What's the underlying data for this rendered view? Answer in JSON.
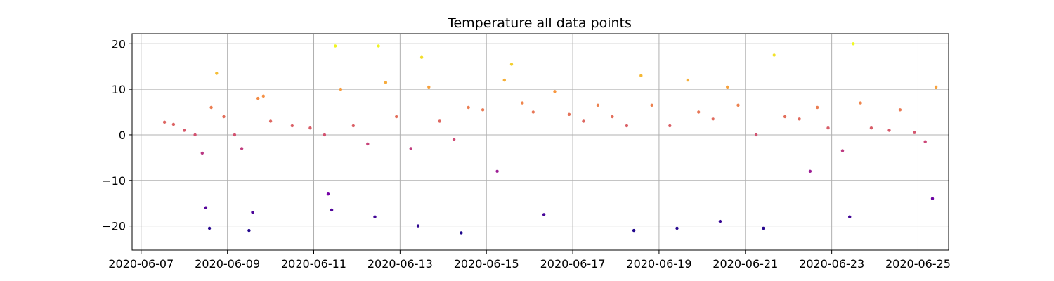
{
  "chart_data": {
    "type": "scatter",
    "title": "Temperature all data points",
    "xlabel": "",
    "ylabel": "",
    "colormap": "plasma",
    "color_encodes": "y value",
    "xlim": [
      "2020-06-06T19:00",
      "2020-06-25T17:00"
    ],
    "ylim": [
      -25.3,
      22.2
    ],
    "xticks": [
      "2020-06-07",
      "2020-06-09",
      "2020-06-11",
      "2020-06-13",
      "2020-06-15",
      "2020-06-17",
      "2020-06-19",
      "2020-06-21",
      "2020-06-23",
      "2020-06-25"
    ],
    "yticks": [
      20,
      10,
      0,
      -10,
      -20
    ],
    "ytick_labels": [
      "20",
      "10",
      "0",
      "−10",
      "−20"
    ],
    "grid": true,
    "series": [
      {
        "values": [
          [
            "2020-06-07T13:00",
            2.8
          ],
          [
            "2020-06-07T18:00",
            2.3
          ],
          [
            "2020-06-08T00:00",
            1.0
          ],
          [
            "2020-06-08T06:00",
            0.0
          ],
          [
            "2020-06-08T10:00",
            -4.0
          ],
          [
            "2020-06-08T12:00",
            -16.0
          ],
          [
            "2020-06-08T14:00",
            -20.5
          ],
          [
            "2020-06-08T15:00",
            6.0
          ],
          [
            "2020-06-08T18:00",
            13.5
          ],
          [
            "2020-06-08T22:00",
            4.0
          ],
          [
            "2020-06-09T04:00",
            0.0
          ],
          [
            "2020-06-09T08:00",
            -3.0
          ],
          [
            "2020-06-09T12:00",
            -21.0
          ],
          [
            "2020-06-09T14:00",
            -17.0
          ],
          [
            "2020-06-09T17:00",
            8.0
          ],
          [
            "2020-06-09T20:00",
            8.5
          ],
          [
            "2020-06-10T00:00",
            3.0
          ],
          [
            "2020-06-10T12:00",
            2.0
          ],
          [
            "2020-06-10T22:00",
            1.5
          ],
          [
            "2020-06-11T06:00",
            0.0
          ],
          [
            "2020-06-11T08:00",
            -13.0
          ],
          [
            "2020-06-11T10:00",
            -16.5
          ],
          [
            "2020-06-11T12:00",
            19.5
          ],
          [
            "2020-06-11T15:00",
            10.0
          ],
          [
            "2020-06-11T22:00",
            2.0
          ],
          [
            "2020-06-12T06:00",
            -2.0
          ],
          [
            "2020-06-12T10:00",
            -18.0
          ],
          [
            "2020-06-12T12:00",
            19.5
          ],
          [
            "2020-06-12T16:00",
            11.5
          ],
          [
            "2020-06-12T22:00",
            4.0
          ],
          [
            "2020-06-13T06:00",
            -3.0
          ],
          [
            "2020-06-13T10:00",
            -20.0
          ],
          [
            "2020-06-13T12:00",
            17.0
          ],
          [
            "2020-06-13T16:00",
            10.5
          ],
          [
            "2020-06-13T22:00",
            3.0
          ],
          [
            "2020-06-14T06:00",
            -1.0
          ],
          [
            "2020-06-14T10:00",
            -21.5
          ],
          [
            "2020-06-14T14:00",
            6.0
          ],
          [
            "2020-06-14T22:00",
            5.5
          ],
          [
            "2020-06-15T06:00",
            -8.0
          ],
          [
            "2020-06-15T10:00",
            12.0
          ],
          [
            "2020-06-15T14:00",
            15.5
          ],
          [
            "2020-06-15T20:00",
            7.0
          ],
          [
            "2020-06-16T02:00",
            5.0
          ],
          [
            "2020-06-16T08:00",
            -17.5
          ],
          [
            "2020-06-16T14:00",
            9.5
          ],
          [
            "2020-06-16T22:00",
            4.5
          ],
          [
            "2020-06-17T06:00",
            3.0
          ],
          [
            "2020-06-17T14:00",
            6.5
          ],
          [
            "2020-06-17T22:00",
            4.0
          ],
          [
            "2020-06-18T06:00",
            2.0
          ],
          [
            "2020-06-18T10:00",
            -21.0
          ],
          [
            "2020-06-18T14:00",
            13.0
          ],
          [
            "2020-06-18T20:00",
            6.5
          ],
          [
            "2020-06-19T06:00",
            2.0
          ],
          [
            "2020-06-19T10:00",
            -20.5
          ],
          [
            "2020-06-19T16:00",
            12.0
          ],
          [
            "2020-06-19T22:00",
            5.0
          ],
          [
            "2020-06-20T06:00",
            3.5
          ],
          [
            "2020-06-20T10:00",
            -19.0
          ],
          [
            "2020-06-20T14:00",
            10.5
          ],
          [
            "2020-06-20T20:00",
            6.5
          ],
          [
            "2020-06-21T06:00",
            0.0
          ],
          [
            "2020-06-21T10:00",
            -20.5
          ],
          [
            "2020-06-21T16:00",
            17.5
          ],
          [
            "2020-06-21T22:00",
            4.0
          ],
          [
            "2020-06-22T06:00",
            3.5
          ],
          [
            "2020-06-22T12:00",
            -8.0
          ],
          [
            "2020-06-22T16:00",
            6.0
          ],
          [
            "2020-06-22T22:00",
            1.5
          ],
          [
            "2020-06-23T06:00",
            -3.5
          ],
          [
            "2020-06-23T10:00",
            -18.0
          ],
          [
            "2020-06-23T12:00",
            20.0
          ],
          [
            "2020-06-23T16:00",
            7.0
          ],
          [
            "2020-06-23T22:00",
            1.5
          ],
          [
            "2020-06-24T08:00",
            1.0
          ],
          [
            "2020-06-24T14:00",
            5.5
          ],
          [
            "2020-06-24T22:00",
            0.5
          ],
          [
            "2020-06-25T04:00",
            -1.5
          ],
          [
            "2020-06-25T08:00",
            -14.0
          ],
          [
            "2020-06-25T10:00",
            10.5
          ]
        ]
      }
    ]
  }
}
